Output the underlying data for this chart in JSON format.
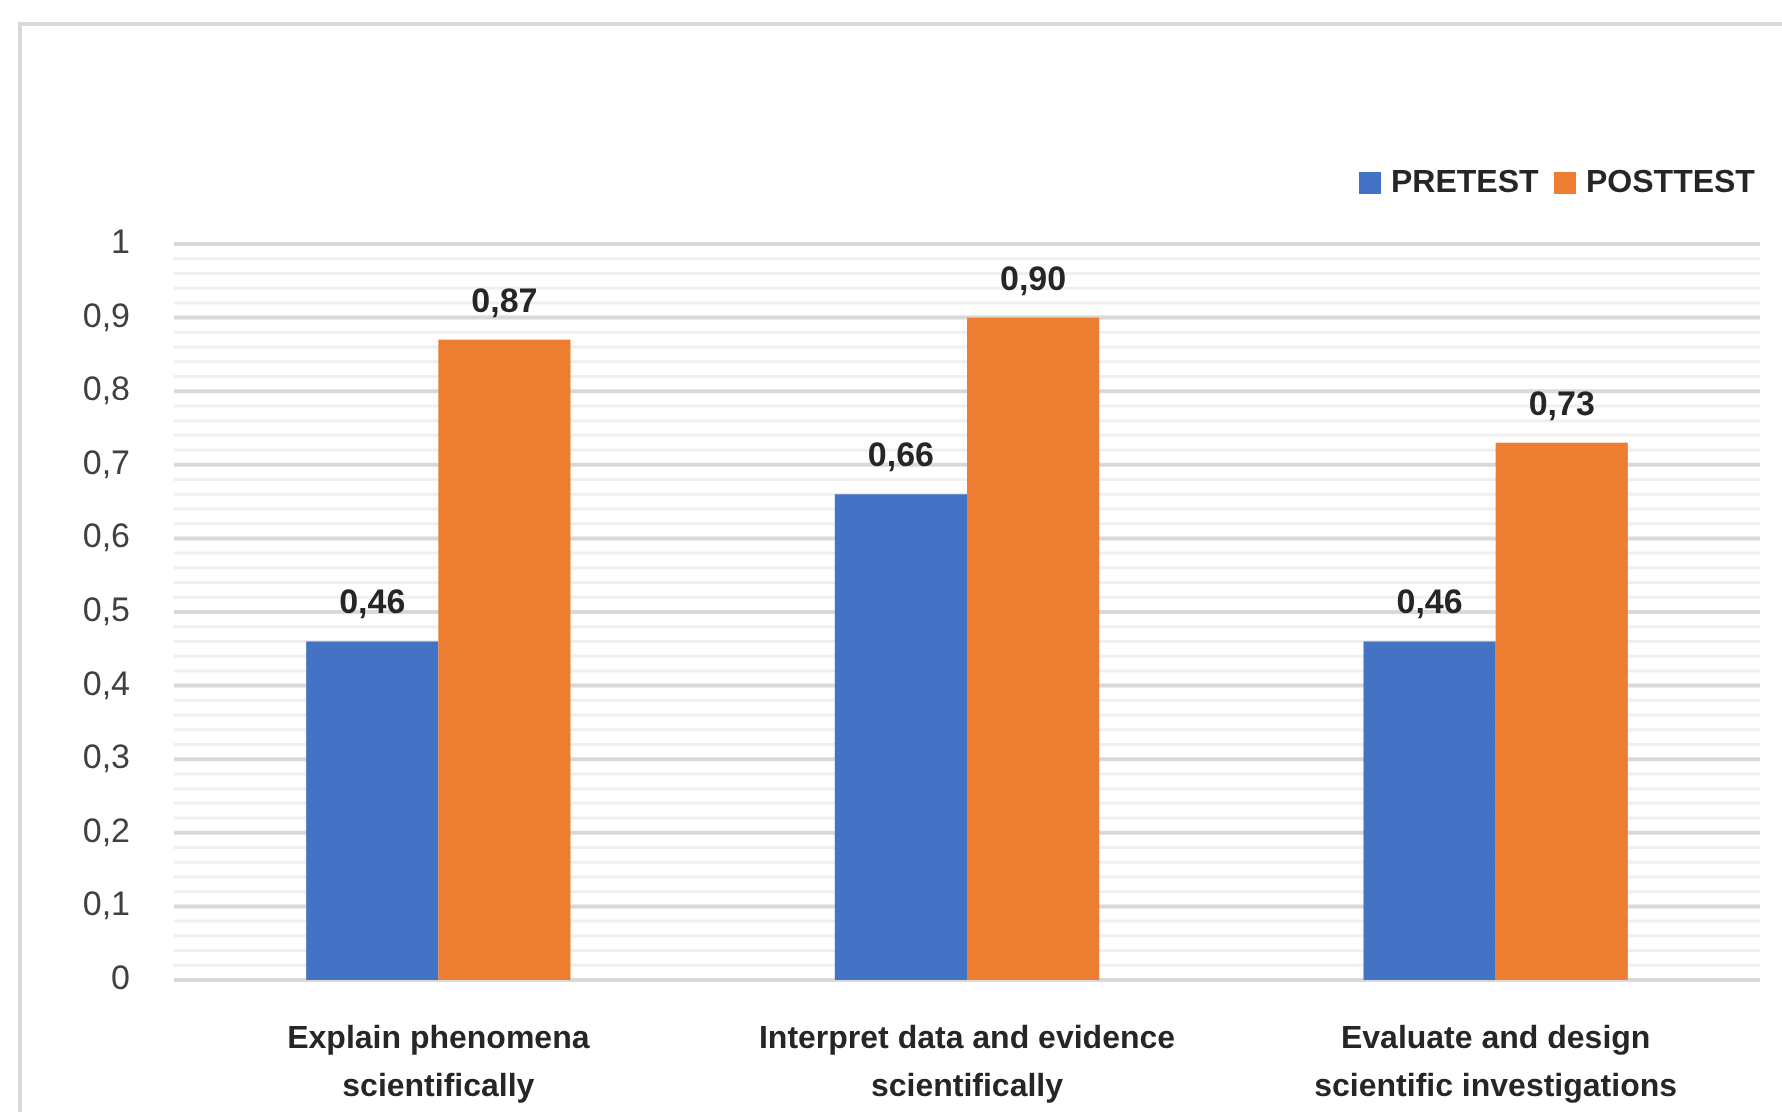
{
  "chart_data": {
    "type": "bar",
    "categories": [
      "Explain phenomena scientifically",
      "Interpret data and evidence scientifically",
      "Evaluate and design scientific investigations"
    ],
    "series": [
      {
        "name": "PRETEST",
        "color": "#4472c4",
        "values": [
          0.46,
          0.66,
          0.46
        ],
        "value_labels": [
          "0,46",
          "0,66",
          "0,46"
        ]
      },
      {
        "name": "POSTTEST",
        "color": "#ed7d31",
        "values": [
          0.87,
          0.9,
          0.73
        ],
        "value_labels": [
          "0,87",
          "0,90",
          "0,73"
        ]
      }
    ],
    "ylim": [
      0,
      1
    ],
    "yticks": [
      {
        "value": 0,
        "label": "0"
      },
      {
        "value": 0.02,
        "label": null
      },
      {
        "value": 0.04,
        "label": null
      },
      {
        "value": 0.06,
        "label": null
      },
      {
        "value": 0.08,
        "label": null
      },
      {
        "value": 0.1,
        "label": "0,1"
      },
      {
        "value": 0.12,
        "label": null
      },
      {
        "value": 0.14,
        "label": null
      },
      {
        "value": 0.16,
        "label": null
      },
      {
        "value": 0.18,
        "label": null
      },
      {
        "value": 0.2,
        "label": "0,2"
      },
      {
        "value": 0.22,
        "label": null
      },
      {
        "value": 0.24,
        "label": null
      },
      {
        "value": 0.26,
        "label": null
      },
      {
        "value": 0.28,
        "label": null
      },
      {
        "value": 0.3,
        "label": "0,3"
      },
      {
        "value": 0.32,
        "label": null
      },
      {
        "value": 0.34,
        "label": null
      },
      {
        "value": 0.36,
        "label": null
      },
      {
        "value": 0.38,
        "label": null
      },
      {
        "value": 0.4,
        "label": "0,4"
      },
      {
        "value": 0.42,
        "label": null
      },
      {
        "value": 0.44,
        "label": null
      },
      {
        "value": 0.46,
        "label": null
      },
      {
        "value": 0.48,
        "label": null
      },
      {
        "value": 0.5,
        "label": "0,5"
      },
      {
        "value": 0.52,
        "label": null
      },
      {
        "value": 0.54,
        "label": null
      },
      {
        "value": 0.56,
        "label": null
      },
      {
        "value": 0.58,
        "label": null
      },
      {
        "value": 0.6,
        "label": "0,6"
      },
      {
        "value": 0.62,
        "label": null
      },
      {
        "value": 0.64,
        "label": null
      },
      {
        "value": 0.66,
        "label": null
      },
      {
        "value": 0.68,
        "label": null
      },
      {
        "value": 0.7,
        "label": "0,7"
      },
      {
        "value": 0.72,
        "label": null
      },
      {
        "value": 0.74,
        "label": null
      },
      {
        "value": 0.76,
        "label": null
      },
      {
        "value": 0.78,
        "label": null
      },
      {
        "value": 0.8,
        "label": "0,8"
      },
      {
        "value": 0.82,
        "label": null
      },
      {
        "value": 0.84,
        "label": null
      },
      {
        "value": 0.86,
        "label": null
      },
      {
        "value": 0.88,
        "label": null
      },
      {
        "value": 0.9,
        "label": "0,9"
      },
      {
        "value": 0.92,
        "label": null
      },
      {
        "value": 0.94,
        "label": null
      },
      {
        "value": 0.96,
        "label": null
      },
      {
        "value": 0.98,
        "label": null
      },
      {
        "value": 1,
        "label": "1"
      }
    ],
    "grid": "y",
    "legend": "top right"
  }
}
